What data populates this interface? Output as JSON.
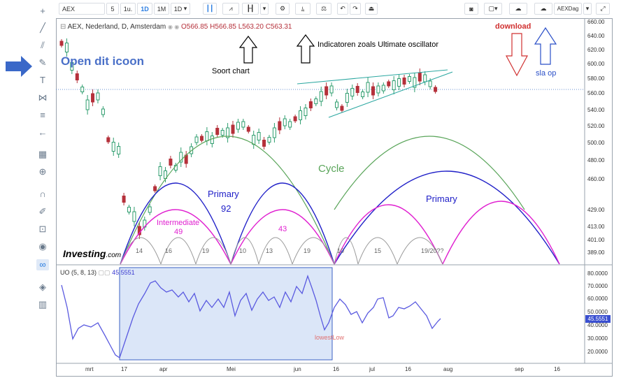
{
  "toolbar": {
    "symbol": "AEX",
    "intervals": [
      "5",
      "1u.",
      "1D",
      "1M",
      "1D"
    ],
    "save_name": "AEXDag"
  },
  "header": {
    "title": "AEX, Nederland, D, Amsterdam",
    "open": "O566.85",
    "high": "H566.85",
    "low": "L563.20",
    "close": "C563.31"
  },
  "indicator": {
    "name": "UO (5, 8, 13)",
    "value": "45.5551"
  },
  "price_axis": [
    "660.00",
    "640.00",
    "620.00",
    "600.00",
    "580.00",
    "560.00",
    "540.00",
    "520.00",
    "500.00",
    "480.00",
    "460.00",
    "429.00",
    "413.00",
    "401.00",
    "389.00"
  ],
  "uo_axis": [
    "80.0000",
    "70.0000",
    "60.0000",
    "50.0000",
    "40.0000",
    "30.0000",
    "20.0000"
  ],
  "uo_current": "45.5551",
  "date_axis": [
    "mrt",
    "17",
    "apr",
    "Mei",
    "jun",
    "16",
    "jul",
    "16",
    "aug",
    "sep",
    "16"
  ],
  "annotations": {
    "open_icon": "Open dit icoon",
    "chart_type": "Soort chart",
    "indicators": "Indicatoren zoals Ultimate oscillator",
    "download": "download",
    "save": "sla op",
    "cycle": "Cycle",
    "primary1": "Primary",
    "primary1_val": "92",
    "primary2": "Primary",
    "intermediate": "Intermediate",
    "intermediate_val": "49",
    "intermediate2_val": "43",
    "lowest_low": "lowestLow"
  },
  "cycle_labels": [
    "14",
    "16",
    "19",
    "10",
    "13",
    "19",
    "10",
    "15",
    "19/20??"
  ],
  "branding": {
    "name": "Investing",
    "suffix": ".com"
  },
  "colors": {
    "cycle": "#5aa55a",
    "primary": "#2020c8",
    "intermediate": "#e020d0",
    "minor": "#999999",
    "up": "#2e9d6e",
    "down": "#b5303a",
    "uo_line": "#5a5ae0",
    "arrow_blue": "#2a5bd7"
  }
}
